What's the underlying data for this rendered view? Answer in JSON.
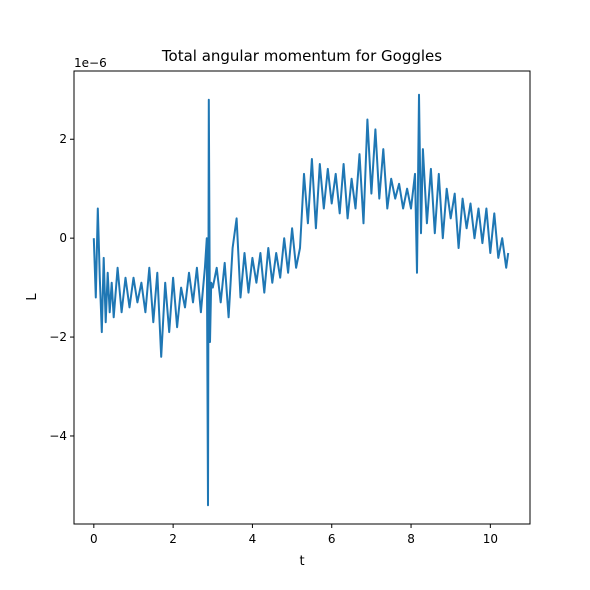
{
  "chart_data": {
    "type": "line",
    "title": "Total angular momentum for Goggles",
    "xlabel": "t",
    "ylabel": "L",
    "offset_text": "1e−6",
    "xlim": [
      -0.5,
      11.0
    ],
    "ylim": [
      -5.78,
      3.38
    ],
    "xticks": [
      0,
      2,
      4,
      6,
      8,
      10
    ],
    "xtick_labels": [
      "0",
      "2",
      "4",
      "6",
      "8",
      "10"
    ],
    "yticks": [
      2,
      0,
      -2,
      -4
    ],
    "ytick_labels": [
      "2",
      "0",
      "−2",
      "−4"
    ],
    "grid": false,
    "legend": "none",
    "series": [
      {
        "color": "#1f77b4",
        "x": [
          0.0,
          0.05,
          0.1,
          0.15,
          0.2,
          0.25,
          0.3,
          0.35,
          0.4,
          0.45,
          0.5,
          0.6,
          0.7,
          0.8,
          0.9,
          1.0,
          1.1,
          1.2,
          1.3,
          1.4,
          1.5,
          1.6,
          1.7,
          1.8,
          1.9,
          2.0,
          2.1,
          2.2,
          2.3,
          2.4,
          2.5,
          2.6,
          2.7,
          2.8,
          2.85,
          2.88,
          2.9,
          2.93,
          2.96,
          3.0,
          3.1,
          3.2,
          3.3,
          3.4,
          3.5,
          3.6,
          3.7,
          3.8,
          3.9,
          4.0,
          4.1,
          4.2,
          4.3,
          4.4,
          4.5,
          4.6,
          4.7,
          4.8,
          4.9,
          5.0,
          5.1,
          5.2,
          5.3,
          5.4,
          5.5,
          5.6,
          5.7,
          5.8,
          5.9,
          6.0,
          6.1,
          6.2,
          6.3,
          6.4,
          6.5,
          6.6,
          6.7,
          6.8,
          6.9,
          7.0,
          7.1,
          7.2,
          7.3,
          7.4,
          7.5,
          7.6,
          7.7,
          7.8,
          7.9,
          8.0,
          8.1,
          8.15,
          8.2,
          8.25,
          8.3,
          8.4,
          8.5,
          8.6,
          8.7,
          8.8,
          8.9,
          9.0,
          9.1,
          9.2,
          9.3,
          9.4,
          9.5,
          9.6,
          9.7,
          9.8,
          9.9,
          10.0,
          10.1,
          10.2,
          10.3,
          10.4,
          10.45
        ],
        "y": [
          0.0,
          -1.2,
          0.6,
          -0.8,
          -1.9,
          -0.4,
          -1.7,
          -0.7,
          -1.5,
          -0.9,
          -1.6,
          -0.6,
          -1.5,
          -0.8,
          -1.4,
          -0.8,
          -1.3,
          -0.9,
          -1.5,
          -0.6,
          -1.7,
          -0.7,
          -2.4,
          -0.9,
          -1.9,
          -0.8,
          -1.8,
          -1.0,
          -1.4,
          -0.7,
          -1.3,
          -0.6,
          -1.5,
          -0.6,
          0.0,
          -5.4,
          2.8,
          -2.1,
          -0.9,
          -1.0,
          -0.6,
          -1.3,
          -0.5,
          -1.6,
          -0.2,
          0.4,
          -1.2,
          -0.3,
          -1.1,
          -0.4,
          -0.9,
          -0.3,
          -1.1,
          -0.2,
          -0.9,
          -0.3,
          -0.8,
          0.0,
          -0.7,
          0.2,
          -0.6,
          -0.2,
          1.3,
          0.3,
          1.6,
          0.2,
          1.5,
          0.6,
          1.4,
          0.7,
          1.3,
          0.5,
          1.5,
          0.4,
          1.2,
          0.6,
          1.7,
          0.3,
          2.4,
          0.9,
          2.2,
          0.8,
          1.8,
          0.6,
          1.2,
          0.8,
          1.1,
          0.6,
          1.0,
          0.6,
          1.3,
          -0.7,
          2.9,
          0.1,
          1.8,
          0.3,
          1.4,
          0.1,
          1.3,
          0.0,
          1.0,
          0.4,
          0.9,
          -0.2,
          0.8,
          0.2,
          0.7,
          0.0,
          0.6,
          -0.1,
          0.6,
          -0.3,
          0.5,
          -0.4,
          0.0,
          -0.6,
          -0.3
        ]
      }
    ]
  }
}
